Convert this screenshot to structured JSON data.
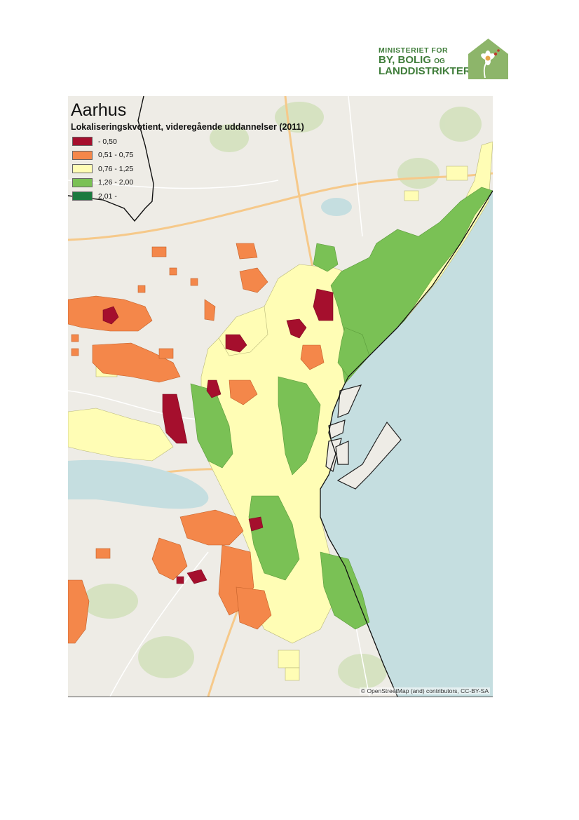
{
  "logo": {
    "line1": "MINISTERIET FOR",
    "line2": "BY, BOLIG",
    "line2_small": "OG",
    "line3": "LANDDISTRIKTER",
    "color": "#3f7d3a",
    "house_color": "#8db56a"
  },
  "map": {
    "title": "Aarhus",
    "subtitle": "Lokaliseringskvotient, videregående uddannelser (2011)",
    "legend": [
      {
        "label": " - 0,50",
        "color": "#a50f2d"
      },
      {
        "label": "0,51 - 0,75",
        "color": "#f4874a"
      },
      {
        "label": "0,76 - 1,25",
        "color": "#fffdb5"
      },
      {
        "label": "1,26 - 2,00",
        "color": "#7ac155"
      },
      {
        "label": "2,01 -",
        "color": "#1a7a3f"
      }
    ],
    "attribution": "© OpenStreetMap (and) contributors, CC-BY-SA",
    "water_color": "#c5dee0",
    "land_color": "#eeece6"
  }
}
